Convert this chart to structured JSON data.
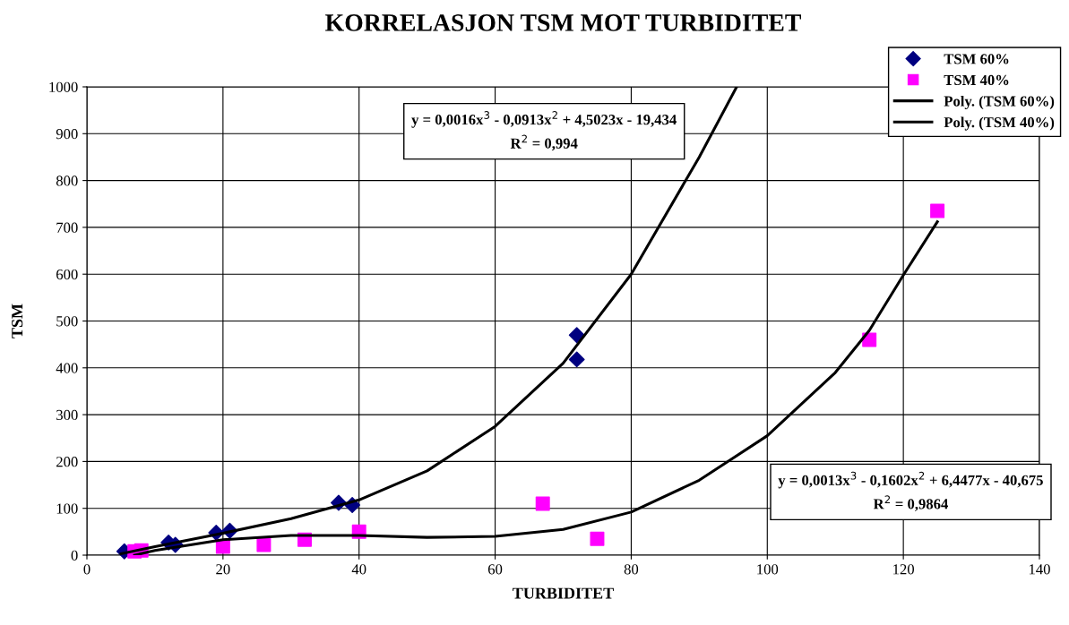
{
  "chart_data": {
    "type": "scatter",
    "title": "KORRELASJON TSM MOT TURBIDITET",
    "xlabel": "TURBIDITET",
    "ylabel": "TSM",
    "xlim": [
      0,
      140
    ],
    "xticks": [
      0,
      20,
      40,
      60,
      80,
      100,
      120,
      140
    ],
    "ylim": [
      0,
      1000
    ],
    "yticks": [
      0,
      100,
      200,
      300,
      400,
      500,
      600,
      700,
      800,
      900,
      1000
    ],
    "grid": true,
    "legend": "top right",
    "series": [
      {
        "name": "TSM 60%",
        "marker": "diamond",
        "color": "#000080",
        "x": [
          5.5,
          12,
          13,
          19,
          21,
          37,
          39,
          72,
          72
        ],
        "values": [
          8,
          27,
          22,
          48,
          52,
          112,
          107,
          470,
          418
        ]
      },
      {
        "name": "TSM 40%",
        "marker": "square",
        "color": "#ff00ff",
        "x": [
          7,
          8,
          20,
          26,
          32,
          40,
          67,
          75,
          115,
          125
        ],
        "values": [
          8,
          10,
          18,
          22,
          33,
          50,
          110,
          35,
          460,
          735
        ]
      },
      {
        "name": "Poly. (TSM 60%)",
        "type": "line",
        "line_style": "solid",
        "color": "#000000",
        "x": [
          5,
          10,
          20,
          30,
          40,
          50,
          60,
          70,
          80,
          90,
          95.5
        ],
        "values": [
          3,
          18,
          47,
          78,
          118,
          180,
          275,
          410,
          600,
          850,
          1000
        ]
      },
      {
        "name": "Poly. (TSM 40%)",
        "type": "line",
        "line_style": "solid",
        "color": "#000000",
        "x": [
          7,
          10,
          20,
          30,
          40,
          50,
          60,
          70,
          80,
          90,
          100,
          110,
          115,
          120,
          125
        ],
        "values": [
          0,
          10,
          33,
          42,
          42,
          38,
          40,
          55,
          92,
          160,
          255,
          390,
          480,
          598,
          712
        ]
      }
    ],
    "annotations": [
      "y = 0,0016x$^{3}$ - 0,0913x$^{2}$ + 4,5023x - 19,434\nR$^{2}$ = 0,994",
      "y = 0,0013x$^{3}$ - 0,1602x$^{2}$ + 6,4477x - 40,675\nR$^{2}$ = 0,9864"
    ]
  }
}
